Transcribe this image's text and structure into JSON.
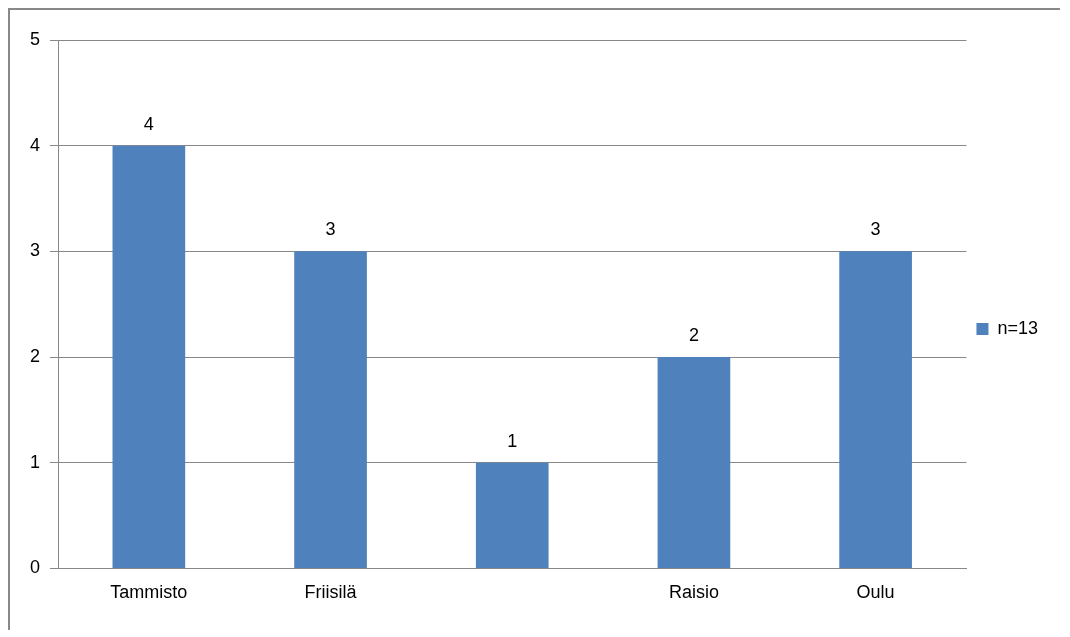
{
  "chart_data": {
    "type": "bar",
    "categories": [
      "Tammisto",
      "Friisilä",
      null,
      "Raisio",
      "Oulu"
    ],
    "series": [
      {
        "name": "n=13",
        "color": "#4f81bd",
        "values": [
          4,
          3,
          1,
          2,
          3
        ]
      }
    ],
    "ylim": [
      0,
      5
    ],
    "yticks": [
      0,
      1,
      2,
      3,
      4,
      5
    ],
    "grid": "y",
    "legend": "right",
    "data_labels": true
  }
}
